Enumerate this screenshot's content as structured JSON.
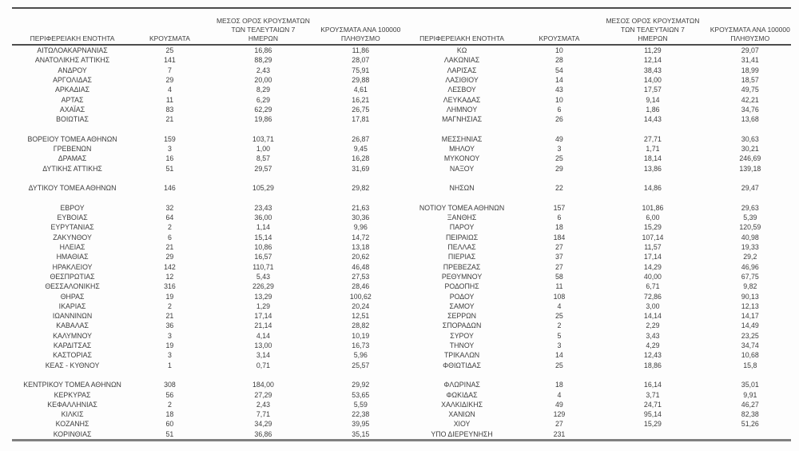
{
  "table": {
    "headers": {
      "region": "ΠΕΡΙΦΕΡΕΙΑΚΗ ΕΝΟΤΗΤΑ",
      "cases": "ΚΡΟΥΣΜΑΤΑ",
      "avg7_lines": [
        "ΜΕΣΟΣ ΟΡΟΣ ΚΡΟΥΣΜΑΤΩΝ",
        "ΤΩΝ ΤΕΛΕΥΤΑΙΩΝ 7",
        "ΗΜΕΡΩΝ"
      ],
      "per100k_lines": [
        "ΚΡΟΥΣΜΑΤΑ ΑΝΑ 100000",
        "ΠΛΗΘΥΣΜΟ"
      ]
    },
    "left_rows": [
      [
        "ΑΙΤΩΛΟΑΚΑΡΝΑΝΙΑΣ",
        "25",
        "16,86",
        "11,86"
      ],
      [
        "ΑΝΑΤΟΛΙΚΗΣ ΑΤΤΙΚΗΣ",
        "141",
        "88,29",
        "28,07"
      ],
      [
        "ΑΝΔΡΟΥ",
        "7",
        "2,43",
        "75,91"
      ],
      [
        "ΑΡΓΟΛΙΔΑΣ",
        "29",
        "20,00",
        "29,88"
      ],
      [
        "ΑΡΚΑΔΙΑΣ",
        "4",
        "8,29",
        "4,61"
      ],
      [
        "ΑΡΤΑΣ",
        "11",
        "6,29",
        "16,21"
      ],
      [
        "ΑΧΑΪΑΣ",
        "83",
        "62,29",
        "26,75"
      ],
      [
        "ΒΟΙΩΤΙΑΣ",
        "21",
        "19,86",
        "17,81"
      ],
      null,
      [
        "ΒΟΡΕΙΟΥ ΤΟΜΕΑ ΑΘΗΝΩΝ",
        "159",
        "103,71",
        "26,87"
      ],
      [
        "ΓΡΕΒΕΝΩΝ",
        "3",
        "1,00",
        "9,45"
      ],
      [
        "ΔΡΑΜΑΣ",
        "16",
        "8,57",
        "16,28"
      ],
      [
        "ΔΥΤΙΚΗΣ ΑΤΤΙΚΗΣ",
        "51",
        "29,57",
        "31,69"
      ],
      null,
      [
        "ΔΥΤΙΚΟΥ ΤΟΜΕΑ ΑΘΗΝΩΝ",
        "146",
        "105,29",
        "29,82"
      ],
      null,
      [
        "ΕΒΡΟΥ",
        "32",
        "23,43",
        "21,63"
      ],
      [
        "ΕΥΒΟΙΑΣ",
        "64",
        "36,00",
        "30,36"
      ],
      [
        "ΕΥΡΥΤΑΝΙΑΣ",
        "2",
        "1,14",
        "9,96"
      ],
      [
        "ΖΑΚΥΝΘΟΥ",
        "6",
        "15,14",
        "14,72"
      ],
      [
        "ΗΛΕΙΑΣ",
        "21",
        "10,86",
        "13,18"
      ],
      [
        "ΗΜΑΘΙΑΣ",
        "29",
        "16,57",
        "20,62"
      ],
      [
        "ΗΡΑΚΛΕΙΟΥ",
        "142",
        "110,71",
        "46,48"
      ],
      [
        "ΘΕΣΠΡΩΤΙΑΣ",
        "12",
        "5,43",
        "27,53"
      ],
      [
        "ΘΕΣΣΑΛΟΝΙΚΗΣ",
        "316",
        "226,29",
        "28,46"
      ],
      [
        "ΘΗΡΑΣ",
        "19",
        "13,29",
        "100,62"
      ],
      [
        "ΙΚΑΡΙΑΣ",
        "2",
        "1,29",
        "20,24"
      ],
      [
        "ΙΩΑΝΝΙΝΩΝ",
        "21",
        "17,14",
        "12,51"
      ],
      [
        "ΚΑΒΑΛΑΣ",
        "36",
        "21,14",
        "28,82"
      ],
      [
        "ΚΑΛΥΜΝΟΥ",
        "3",
        "4,14",
        "10,19"
      ],
      [
        "ΚΑΡΔΙΤΣΑΣ",
        "19",
        "13,00",
        "16,73"
      ],
      [
        "ΚΑΣΤΟΡΙΑΣ",
        "3",
        "3,14",
        "5,96"
      ],
      [
        "ΚΕΑΣ - ΚΥΘΝΟΥ",
        "1",
        "0,71",
        "25,57"
      ],
      null,
      [
        "ΚΕΝΤΡΙΚΟΥ ΤΟΜΕΑ ΑΘΗΝΩΝ",
        "308",
        "184,00",
        "29,92"
      ],
      [
        "ΚΕΡΚΥΡΑΣ",
        "56",
        "27,29",
        "53,65"
      ],
      [
        "ΚΕΦΑΛΛΗΝΙΑΣ",
        "2",
        "2,43",
        "5,59"
      ],
      [
        "ΚΙΛΚΙΣ",
        "18",
        "7,71",
        "22,38"
      ],
      [
        "ΚΟΖΑΝΗΣ",
        "60",
        "34,29",
        "39,95"
      ],
      [
        "ΚΟΡΙΝΘΙΑΣ",
        "51",
        "36,86",
        "35,15"
      ]
    ],
    "right_rows": [
      [
        "ΚΩ",
        "10",
        "11,29",
        "29,07"
      ],
      [
        "ΛΑΚΩΝΙΑΣ",
        "28",
        "12,14",
        "31,41"
      ],
      [
        "ΛΑΡΙΣΑΣ",
        "54",
        "38,43",
        "18,99"
      ],
      [
        "ΛΑΣΙΘΙΟΥ",
        "14",
        "14,00",
        "18,57"
      ],
      [
        "ΛΕΣΒΟΥ",
        "43",
        "17,57",
        "49,75"
      ],
      [
        "ΛΕΥΚΑΔΑΣ",
        "10",
        "9,14",
        "42,21"
      ],
      [
        "ΛΗΜΝΟΥ",
        "6",
        "1,86",
        "34,76"
      ],
      [
        "ΜΑΓΝΗΣΙΑΣ",
        "26",
        "14,43",
        "13,68"
      ],
      null,
      [
        "ΜΕΣΣΗΝΙΑΣ",
        "49",
        "27,71",
        "30,63"
      ],
      [
        "ΜΗΛΟΥ",
        "3",
        "1,71",
        "30,21"
      ],
      [
        "ΜΥΚΟΝΟΥ",
        "25",
        "18,14",
        "246,69"
      ],
      [
        "ΝΑΞΟΥ",
        "29",
        "13,86",
        "139,18"
      ],
      null,
      [
        "ΝΗΣΩΝ",
        "22",
        "14,86",
        "29,47"
      ],
      null,
      [
        "ΝΟΤΙΟΥ ΤΟΜΕΑ ΑΘΗΝΩΝ",
        "157",
        "101,86",
        "29,63"
      ],
      [
        "ΞΑΝΘΗΣ",
        "6",
        "6,00",
        "5,39"
      ],
      [
        "ΠΑΡΟΥ",
        "18",
        "15,29",
        "120,59"
      ],
      [
        "ΠΕΙΡΑΙΩΣ",
        "184",
        "107,14",
        "40,98"
      ],
      [
        "ΠΕΛΛΑΣ",
        "27",
        "11,57",
        "19,33"
      ],
      [
        "ΠΙΕΡΙΑΣ",
        "37",
        "17,14",
        "29,2"
      ],
      [
        "ΠΡΕΒΕΖΑΣ",
        "27",
        "14,29",
        "46,96"
      ],
      [
        "ΡΕΘΥΜΝΟΥ",
        "58",
        "40,00",
        "67,75"
      ],
      [
        "ΡΟΔΟΠΗΣ",
        "11",
        "6,71",
        "9,82"
      ],
      [
        "ΡΟΔΟΥ",
        "108",
        "72,86",
        "90,13"
      ],
      [
        "ΣΑΜΟΥ",
        "4",
        "3,00",
        "12,13"
      ],
      [
        "ΣΕΡΡΩΝ",
        "25",
        "14,14",
        "14,17"
      ],
      [
        "ΣΠΟΡΑΔΩΝ",
        "2",
        "2,29",
        "14,49"
      ],
      [
        "ΣΥΡΟΥ",
        "5",
        "3,43",
        "23,25"
      ],
      [
        "ΤΗΝΟΥ",
        "3",
        "4,29",
        "34,74"
      ],
      [
        "ΤΡΙΚΑΛΩΝ",
        "14",
        "12,43",
        "10,68"
      ],
      [
        "ΦΘΙΩΤΙΔΑΣ",
        "25",
        "18,86",
        "15,8"
      ],
      null,
      [
        "ΦΛΩΡΙΝΑΣ",
        "18",
        "16,14",
        "35,01"
      ],
      [
        "ΦΩΚΙΔΑΣ",
        "4",
        "3,71",
        "9,91"
      ],
      [
        "ΧΑΛΚΙΔΙΚΗΣ",
        "49",
        "24,71",
        "46,27"
      ],
      [
        "ΧΑΝΙΩΝ",
        "129",
        "95,14",
        "82,38"
      ],
      [
        "ΧΙΟΥ",
        "27",
        "15,29",
        "51,26"
      ],
      [
        "ΥΠΟ ΔΙΕΡΕΥΝΗΣΗ",
        "231",
        "",
        ""
      ]
    ]
  },
  "colors": {
    "text": "#3d3d3d",
    "thin_line": "#4d4d4d",
    "thick_line": "#808080"
  }
}
